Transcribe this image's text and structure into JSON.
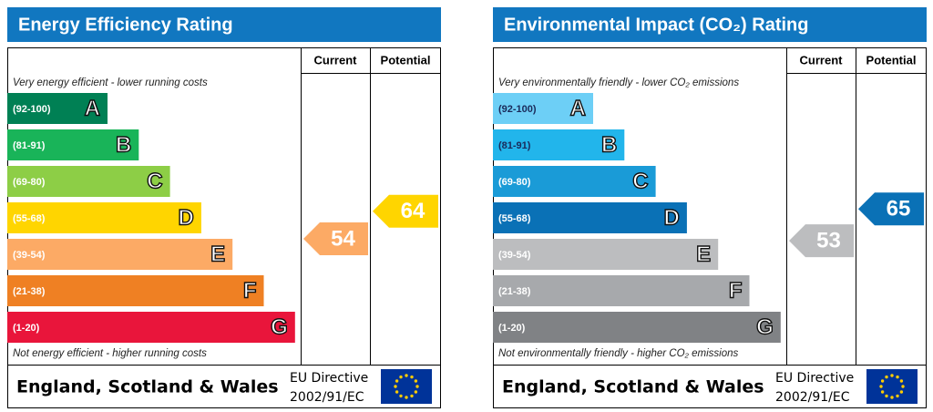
{
  "panels": [
    {
      "title": "Energy Efficiency Rating",
      "current_header": "Current",
      "potential_header": "Potential",
      "top_note": "Very energy efficient - lower running costs",
      "bottom_note": "Not energy efficient - higher running costs",
      "bands": [
        {
          "range": "(92-100)",
          "letter": "A",
          "color": "#008054",
          "label_color": "#ffffff"
        },
        {
          "range": "(81-91)",
          "letter": "B",
          "color": "#19b459",
          "label_color": "#ffffff"
        },
        {
          "range": "(69-80)",
          "letter": "C",
          "color": "#8dce46",
          "label_color": "#ffffff"
        },
        {
          "range": "(55-68)",
          "letter": "D",
          "color": "#ffd500",
          "label_color": "#ffffff"
        },
        {
          "range": "(39-54)",
          "letter": "E",
          "color": "#fcaa65",
          "label_color": "#ffffff"
        },
        {
          "range": "(21-38)",
          "letter": "F",
          "color": "#ef8023",
          "label_color": "#ffffff"
        },
        {
          "range": "(1-20)",
          "letter": "G",
          "color": "#e9153b",
          "label_color": "#ffffff"
        }
      ],
      "current": 54,
      "potential": 64,
      "region": "England, Scotland & Wales",
      "directive_line1": "EU Directive",
      "directive_line2": "2002/91/EC"
    },
    {
      "title": "Environmental Impact (CO₂) Rating",
      "current_header": "Current",
      "potential_header": "Potential",
      "top_note": "Very environmentally friendly - lower CO₂ emissions",
      "bottom_note": "Not environmentally friendly - higher CO₂ emissions",
      "bands": [
        {
          "range": "(92-100)",
          "letter": "A",
          "color": "#6dcff6",
          "label_color": "#1a2a5a"
        },
        {
          "range": "(81-91)",
          "letter": "B",
          "color": "#22b5eb",
          "label_color": "#1a2a5a"
        },
        {
          "range": "(69-80)",
          "letter": "C",
          "color": "#1a9bd7",
          "label_color": "#ffffff"
        },
        {
          "range": "(55-68)",
          "letter": "D",
          "color": "#0a71b6",
          "label_color": "#ffffff"
        },
        {
          "range": "(39-54)",
          "letter": "E",
          "color": "#bcbdbf",
          "label_color": "#ffffff"
        },
        {
          "range": "(21-38)",
          "letter": "F",
          "color": "#a7a9ac",
          "label_color": "#ffffff"
        },
        {
          "range": "(1-20)",
          "letter": "G",
          "color": "#808285",
          "label_color": "#ffffff"
        }
      ],
      "current": 53,
      "potential": 65,
      "region": "England, Scotland & Wales",
      "directive_line1": "EU Directive",
      "directive_line2": "2002/91/EC"
    }
  ]
}
